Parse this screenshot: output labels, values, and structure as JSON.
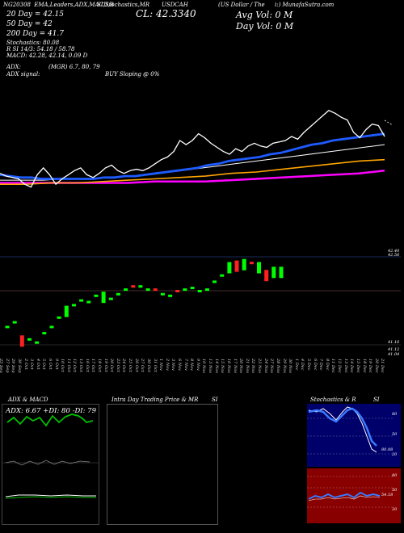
{
  "header": {
    "line1_parts": [
      "NG20308",
      "EMA,Leaders,ADX,MACD,B",
      "SI,Stochastics,MR",
      "USDCAH",
      "(US Dollar / The",
      "i:) MunafaSutra.com"
    ],
    "cl_label": "CL: 42.3340",
    "avg_vol": "Avg Vol: 0   M",
    "day_vol": "Day Vol: 0   M",
    "ema20": "20  Day = 42.15",
    "ema50": "50  Day = 42",
    "ema200": "200  Day = 41.7",
    "stoch": "Stochastics: 80.08",
    "rsi": "R          SI 14/3: 54.18 / 58.78",
    "macd": "MACD: 42.28, 42.14, 0.09 D",
    "adx": "ADX:",
    "mgr": "(MGR) 6.7,  80,  79",
    "adx_signal": "ADX  signal:",
    "buy_signal": "BUY Sloping @ 0%"
  },
  "price_axis": {
    "top_labels": [
      "42.40",
      "42.56"
    ],
    "bottom_labels": [
      "41.16",
      "41.12",
      "41.04"
    ],
    "right_mid": [
      "41.16",
      "41.12"
    ]
  },
  "date_labels": [
    "25 Sep",
    "27 Sep",
    "29 Sep",
    "30 Sep",
    "2 Oct",
    "3 Oct",
    "4 Oct",
    "5 Oct",
    "6 Oct",
    "9 Oct",
    "10 Oct",
    "11 Oct",
    "12 Oct",
    "13 Oct",
    "16 Oct",
    "17 Oct",
    "18 Oct",
    "19 Oct",
    "20 Oct",
    "23 Oct",
    "24 Oct",
    "25 Oct",
    "26 Oct",
    "27 Oct",
    "30 Oct",
    "31 Oct",
    "1 Nov",
    "2 Nov",
    "3 Nov",
    "6 Nov",
    "7 Nov",
    "8 Nov",
    "9 Nov",
    "10 Nov",
    "13 Nov",
    "14 Nov",
    "15 Nov",
    "16 Nov",
    "17 Nov",
    "20 Nov",
    "21 Nov",
    "22 Nov",
    "23 Nov",
    "24 Nov",
    "27 Nov",
    "28 Nov",
    "29 Nov",
    "30 Nov",
    "1 Dec",
    "4 Dec",
    "5 Dec",
    "6 Dec",
    "7 Dec",
    "8 Dec",
    "11 Dec",
    "12 Dec",
    "13 Dec",
    "14 Dec",
    "15 Dec",
    "18 Dec",
    "19 Dec",
    "20 Dec",
    "21 Dec"
  ],
  "panels": {
    "adx_title": "ADX  & MACD",
    "adx_values": "ADX: 6.67  +DI: 80  -DI: 79",
    "intraday_title": "Intra  Day Trading Price  & MR",
    "intraday_title_b": "SI",
    "stoch_title": "Stochastics & R",
    "stoch_title_b": "SI",
    "stoch_axis": [
      "80",
      "50",
      "20"
    ],
    "rsi_axis": [
      "80",
      "50",
      "20"
    ],
    "stoch_value": "80.08",
    "rsi_value": "54.18"
  },
  "colors": {
    "price": "#ffffff",
    "ema20": "#1e5bff",
    "ema50": "#ffffff",
    "ema100": "#ffa500",
    "ema200": "#ff00ff",
    "up": "#00ff00",
    "down": "#ff2020",
    "stoch_bg": "#00006a",
    "rsi_bg": "#880000",
    "adx_line": "#00c000"
  },
  "chart_data": {
    "type": "line",
    "title": "",
    "series": [
      {
        "name": "",
        "values": [
          42.06,
          42.04,
          42.03,
          42.02,
          41.98,
          41.96,
          42.05,
          42.1,
          42.05,
          41.98,
          42.02,
          42.05,
          42.08,
          42.1,
          42.05,
          42.03,
          42.06,
          42.1,
          42.12,
          42.08,
          42.06,
          42.08,
          42.09,
          42.08,
          42.1,
          42.13,
          42.16,
          42.18,
          42.22,
          42.3,
          42.27,
          42.3,
          42.35,
          42.32,
          42.28,
          42.25,
          42.22,
          42.2,
          42.24,
          42.22,
          42.26,
          42.28,
          42.26,
          42.25,
          42.28,
          42.29,
          42.3,
          42.33,
          42.31,
          42.36,
          42.4,
          42.44,
          42.48,
          42.52,
          42.5,
          42.47,
          42.45,
          42.36,
          42.32,
          42.38,
          42.42,
          42.41,
          42.33
        ]
      }
    ],
    "ema": [
      {
        "name": "",
        "values": [
          42.05,
          42.04,
          42.03,
          42.03,
          42.02,
          42.02,
          42.02,
          42.02,
          42.02,
          42.02,
          42.03,
          42.03,
          42.04,
          42.04,
          42.05,
          42.06,
          42.07,
          42.08,
          42.09,
          42.1,
          42.12,
          42.13,
          42.15,
          42.16,
          42.17,
          42.18,
          42.2,
          42.21,
          42.23,
          42.25,
          42.27,
          42.28,
          42.3,
          42.31,
          42.32,
          42.33,
          42.34,
          42.35
        ]
      },
      {
        "name": "",
        "values": [
          42.01,
          42.01,
          42.01,
          42.02,
          42.02,
          42.03,
          42.04,
          42.05,
          42.07,
          42.09,
          42.11,
          42.13,
          42.15,
          42.17,
          42.19,
          42.21,
          42.23,
          42.25,
          42.27
        ]
      },
      {
        "name": "",
        "values": [
          41.98,
          41.98,
          41.99,
          41.99,
          42.0,
          42.01,
          42.02,
          42.03,
          42.04,
          42.06,
          42.07,
          42.09,
          42.11,
          42.13,
          42.15,
          42.16
        ]
      },
      {
        "name": "",
        "values": [
          41.99,
          41.99,
          41.99,
          41.99,
          41.99,
          41.99,
          42.0,
          42.0,
          42.0,
          42.01,
          42.02,
          42.03,
          42.04,
          42.05,
          42.06,
          42.08
        ]
      }
    ],
    "candles": {
      "mid": [
        41.11,
        41.14,
        41.02,
        41.03,
        41.01,
        41.07,
        41.11,
        41.17,
        41.21,
        41.25,
        41.28,
        41.27,
        41.31,
        41.3,
        41.29,
        41.32,
        41.35,
        41.37,
        41.37,
        41.35,
        41.35,
        41.32,
        41.31,
        41.34,
        41.35,
        41.36,
        41.34,
        41.35,
        41.4,
        41.44,
        41.49,
        41.5,
        41.51,
        41.52,
        41.49,
        41.44,
        41.46,
        41.46
      ],
      "up": [
        1,
        1,
        0,
        1,
        1,
        1,
        1,
        1,
        1,
        1,
        1,
        1,
        1,
        1,
        1,
        1,
        1,
        0,
        1,
        1,
        0,
        1,
        1,
        0,
        1,
        1,
        1,
        1,
        1,
        1,
        1,
        0,
        1,
        0,
        1,
        0,
        1,
        1
      ]
    },
    "xlabel": "",
    "ylabel": ""
  }
}
